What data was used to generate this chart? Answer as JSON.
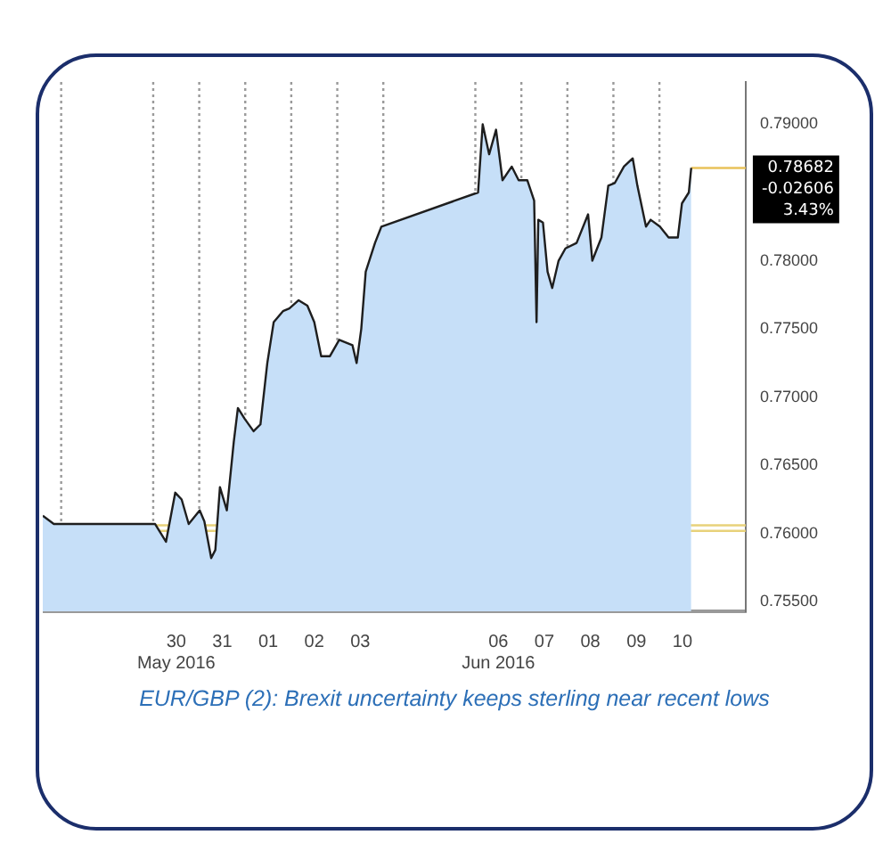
{
  "chart_data": {
    "type": "area",
    "title": "EUR/GBP (2): Brexit uncertainty keeps sterling near recent lows",
    "xlim": [
      "2016-05-27T14:24",
      "2016-06-11T21:00"
    ],
    "xticks": [
      {
        "value": "2016-05-30T12:00",
        "label": "30\nMay 2016"
      },
      {
        "value": "2016-05-31T12:00",
        "label": "31"
      },
      {
        "value": "2016-06-01T12:00",
        "label": "01"
      },
      {
        "value": "2016-06-02T12:00",
        "label": "02"
      },
      {
        "value": "2016-06-03T12:00",
        "label": "03"
      },
      {
        "value": "2016-06-06T12:00",
        "label": "06\nJun 2016"
      },
      {
        "value": "2016-06-07T12:00",
        "label": "07"
      },
      {
        "value": "2016-06-08T12:00",
        "label": "08"
      },
      {
        "value": "2016-06-09T12:00",
        "label": "09"
      },
      {
        "value": "2016-06-10T12:00",
        "label": "10"
      }
    ],
    "ylim": [
      0.7543,
      0.7931
    ],
    "yticks": [
      {
        "value": 0.755,
        "label": "0.75500"
      },
      {
        "value": 0.76,
        "label": "0.76000"
      },
      {
        "value": 0.765,
        "label": "0.76500"
      },
      {
        "value": 0.77,
        "label": "0.77000"
      },
      {
        "value": 0.775,
        "label": "0.77500"
      },
      {
        "value": 0.78,
        "label": "0.78000"
      },
      {
        "value": 0.79,
        "label": "0.79000"
      }
    ],
    "series": [
      {
        "color": "#c6dff8",
        "x": [
          "2016-05-27T14:24",
          "2016-05-27T20:10",
          "2016-05-30T01:00",
          "2016-05-30T06:40",
          "2016-05-30T11:30",
          "2016-05-30T14:50",
          "2016-05-30T18:30",
          "2016-05-31T00:15",
          "2016-05-31T02:40",
          "2016-05-31T06:15",
          "2016-05-31T08:24",
          "2016-05-31T10:48",
          "2016-05-31T14:24",
          "2016-05-31T18:00",
          "2016-05-31T20:10",
          "2016-05-31T23:45",
          "2016-06-01T04:20",
          "2016-06-01T07:55",
          "2016-06-01T11:30",
          "2016-06-01T14:50",
          "2016-06-01T19:40",
          "2016-06-01T23:00",
          "2016-06-02T03:50",
          "2016-06-02T08:24",
          "2016-06-02T12:00",
          "2016-06-02T15:36",
          "2016-06-02T20:10",
          "2016-06-03T01:00",
          "2016-06-03T07:55",
          "2016-06-03T10:05",
          "2016-06-03T12:30",
          "2016-06-03T14:50",
          "2016-06-03T19:40",
          "2016-06-03T23:00",
          "2016-06-06T01:25",
          "2016-06-06T03:50",
          "2016-06-06T07:12",
          "2016-06-06T10:48",
          "2016-06-06T14:10",
          "2016-06-06T19:00",
          "2016-06-06T22:35",
          "2016-06-07T03:05",
          "2016-06-07T06:40",
          "2016-06-07T07:55",
          "2016-06-07T08:50",
          "2016-06-07T11:15",
          "2016-06-07T13:40",
          "2016-06-07T16:05",
          "2016-06-07T19:25",
          "2016-06-07T23:00",
          "2016-06-08T04:48",
          "2016-06-08T10:48",
          "2016-06-08T13:00",
          "2016-06-08T17:45",
          "2016-06-08T21:20",
          "2016-06-09T00:45",
          "2016-06-09T05:30",
          "2016-06-09T10:05",
          "2016-06-09T12:30",
          "2016-06-09T17:00",
          "2016-06-09T19:25",
          "2016-06-10T00:15",
          "2016-06-10T04:48",
          "2016-06-10T09:36",
          "2016-06-10T11:45",
          "2016-06-10T15:20",
          "2016-06-10T16:35"
        ],
        "values": [
          0.7613,
          0.7607,
          0.7607,
          0.7594,
          0.763,
          0.7625,
          0.7607,
          0.7617,
          0.7609,
          0.7582,
          0.7588,
          0.7634,
          0.7617,
          0.7667,
          0.7692,
          0.7684,
          0.7675,
          0.768,
          0.7725,
          0.7755,
          0.7763,
          0.7765,
          0.7771,
          0.7767,
          0.7755,
          0.773,
          0.773,
          0.7742,
          0.7738,
          0.7725,
          0.775,
          0.7792,
          0.7813,
          0.7825,
          0.785,
          0.79,
          0.7878,
          0.7896,
          0.7859,
          0.7869,
          0.7859,
          0.7859,
          0.7844,
          0.7755,
          0.783,
          0.7828,
          0.7792,
          0.778,
          0.78,
          0.7809,
          0.7813,
          0.7834,
          0.78,
          0.7817,
          0.7855,
          0.7857,
          0.7869,
          0.7875,
          0.7855,
          0.7825,
          0.783,
          0.7825,
          0.7817,
          0.7817,
          0.7842,
          0.785,
          0.7868
        ]
      },
      {
        "type": "line",
        "color": "#e8c25a",
        "x": [
          "2016-06-10T16:35",
          "2016-06-11T21:00"
        ],
        "values": [
          0.7868,
          0.7868
        ]
      }
    ],
    "ref_lines": [
      {
        "axis": "y",
        "value": 0.7606,
        "color": "#e8d27a"
      },
      {
        "axis": "y",
        "value": 0.7602,
        "color": "#e8d27a"
      },
      {
        "axis": "x",
        "value": "2016-05-28T00:00",
        "color": "#9a9a9a",
        "line_style": "dotted"
      },
      {
        "axis": "x",
        "value": "2016-05-30T00:00",
        "color": "#9a9a9a",
        "line_style": "dotted"
      },
      {
        "axis": "x",
        "value": "2016-05-31T00:00",
        "color": "#9a9a9a",
        "line_style": "dotted"
      },
      {
        "axis": "x",
        "value": "2016-06-01T00:00",
        "color": "#9a9a9a",
        "line_style": "dotted"
      },
      {
        "axis": "x",
        "value": "2016-06-02T00:00",
        "color": "#9a9a9a",
        "line_style": "dotted"
      },
      {
        "axis": "x",
        "value": "2016-06-03T00:00",
        "color": "#9a9a9a",
        "line_style": "dotted"
      },
      {
        "axis": "x",
        "value": "2016-06-04T00:00",
        "color": "#9a9a9a",
        "line_style": "dotted"
      },
      {
        "axis": "x",
        "value": "2016-06-06T00:00",
        "color": "#9a9a9a",
        "line_style": "dotted"
      },
      {
        "axis": "x",
        "value": "2016-06-07T00:00",
        "color": "#9a9a9a",
        "line_style": "dotted"
      },
      {
        "axis": "x",
        "value": "2016-06-08T00:00",
        "color": "#9a9a9a",
        "line_style": "dotted"
      },
      {
        "axis": "x",
        "value": "2016-06-09T00:00",
        "color": "#9a9a9a",
        "line_style": "dotted"
      },
      {
        "axis": "x",
        "value": "2016-06-10T00:00",
        "color": "#9a9a9a",
        "line_style": "dotted"
      }
    ],
    "annotations": [
      "0.78682",
      "-0.02606",
      "3.43%"
    ]
  }
}
